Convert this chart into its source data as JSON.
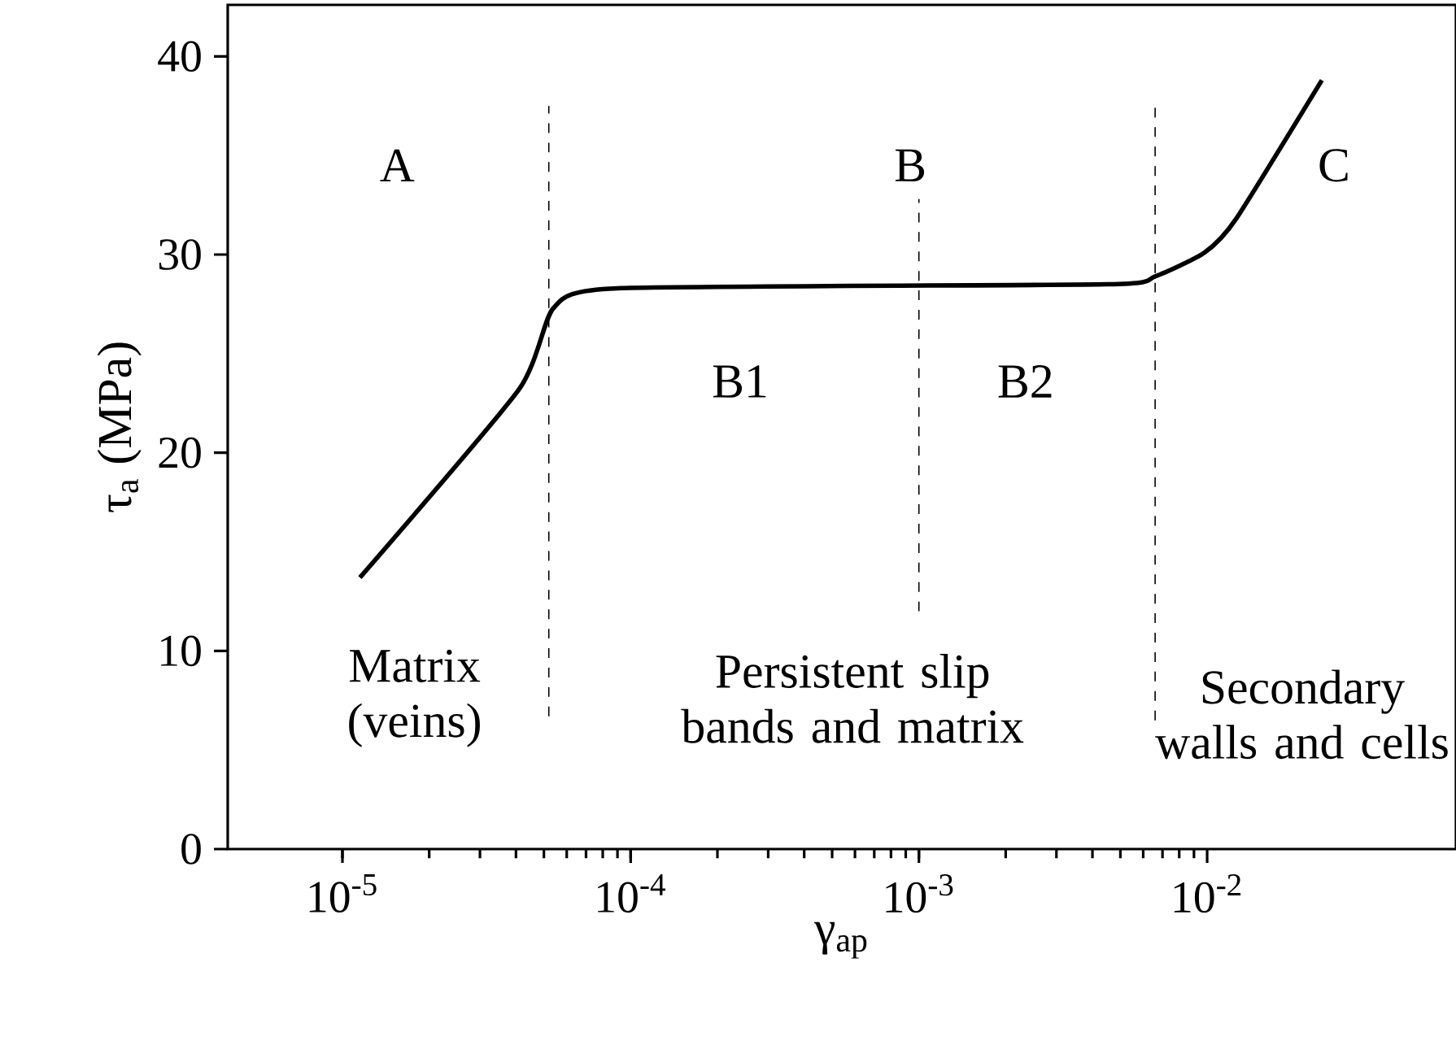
{
  "chart_data": {
    "type": "line",
    "xlabel": "γ$_{ap}$",
    "ylabel": "τ$_{a}$ (MPa)",
    "log": "x",
    "x": [
      1.15e-05,
      4.1e-05,
      5.4e-05,
      9e-05,
      0.0045,
      0.0066,
      0.0098,
      0.0126,
      0.025
    ],
    "series": [
      {
        "color": "#000000",
        "values": [
          13.7,
          23.2,
          27.3,
          28.3,
          28.5,
          28.9,
          30.1,
          31.8,
          38.8
        ]
      }
    ],
    "xlim": [
      4e-06,
      0.073
    ],
    "ylim": [
      0,
      42.6
    ],
    "xticks": [
      {
        "value": 1e-05,
        "label": "10$^{-5}$"
      },
      {
        "value": 0.0001,
        "label": "10$^{-4}$"
      },
      {
        "value": 0.001,
        "label": "10$^{-3}$"
      },
      {
        "value": 0.01,
        "label": "10$^{-2}$"
      }
    ],
    "yticks": [
      0,
      10,
      20,
      30,
      40
    ],
    "ref_lines": [
      {
        "axis": "x",
        "value": 5.2e-05,
        "line_style": "dashed"
      },
      {
        "axis": "x",
        "value": 0.001,
        "line_style": "dashed"
      },
      {
        "axis": "x",
        "value": 0.0066,
        "line_style": "dashed"
      }
    ],
    "annotations": [
      "A",
      "B",
      "C",
      "B1",
      "B2",
      "Matrix (veins)",
      "Persistent slip bands and matrix",
      "Secondary walls and cells"
    ],
    "grid": false
  }
}
